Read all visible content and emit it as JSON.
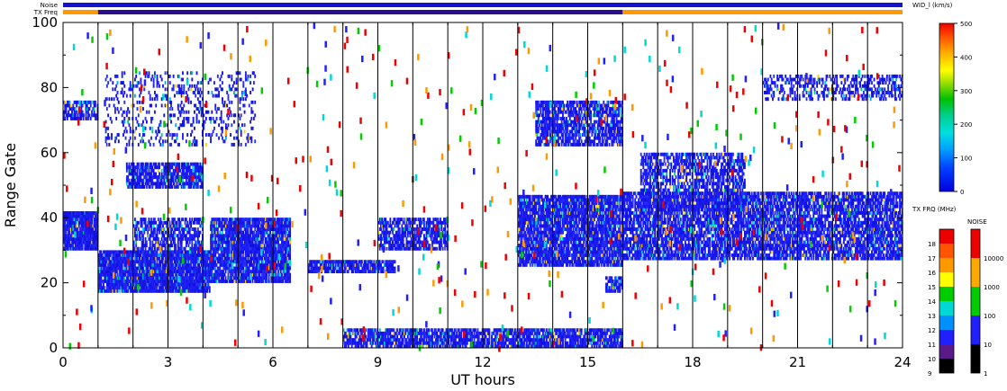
{
  "chart_data": {
    "type": "heatmap",
    "xlabel": "UT hours",
    "ylabel": "Range Gate",
    "x_ticks": [
      "0",
      "3",
      "6",
      "9",
      "12",
      "15",
      "18",
      "21",
      "24"
    ],
    "y_ticks": [
      "0",
      "20",
      "40",
      "60",
      "80",
      "100"
    ],
    "xlim": [
      0,
      24
    ],
    "ylim": [
      0,
      100
    ],
    "vertical_lines_ut": [
      1,
      2,
      3,
      4,
      5,
      6,
      7,
      8,
      9,
      10,
      11,
      12,
      13,
      14,
      15,
      16,
      17,
      18,
      19,
      20,
      21,
      22,
      23
    ],
    "status_bars": {
      "noise_label": "Noise",
      "txfreq_label": "TX Freq",
      "noise_color": "#1414d0",
      "txfreq_segments": [
        {
          "from": 0,
          "to": 1,
          "color": "#ff9900"
        },
        {
          "from": 1,
          "to": 16,
          "color": "#2a0f8f"
        },
        {
          "from": 16,
          "to": 24,
          "color": "#ff9900"
        }
      ]
    },
    "colorbars": [
      {
        "title": "WID_l (km/s)",
        "ticks": [
          "0",
          "100",
          "200",
          "300",
          "400",
          "500"
        ]
      },
      {
        "title": "TX FRQ (MHz)",
        "ticks": [
          "9",
          "10",
          "11",
          "12",
          "13",
          "14",
          "15",
          "16",
          "17",
          "18"
        ],
        "colors": [
          "#000000",
          "#5a1a8a",
          "#2020ff",
          "#0090ff",
          "#00d8d8",
          "#00cc00",
          "#ffff00",
          "#ff9900",
          "#ff5500",
          "#ee0000"
        ]
      },
      {
        "title": "NOISE",
        "ticks": [
          "1",
          "10",
          "100",
          "1000",
          "10000"
        ],
        "colors": [
          "#000000",
          "#2020ff",
          "#00cc00",
          "#ffaa00",
          "#ee0000"
        ]
      }
    ],
    "dominant_color": "#1a1aee",
    "scatter_regions": [
      {
        "name": "band-start-35",
        "x0": 0.0,
        "x1": 1.0,
        "y0": 30,
        "y1": 42,
        "density": 0.95
      },
      {
        "name": "patch-start-73",
        "x0": 0.0,
        "x1": 1.0,
        "y0": 70,
        "y1": 76,
        "density": 0.7
      },
      {
        "name": "low-band-20",
        "x0": 1.0,
        "x1": 4.2,
        "y0": 17,
        "y1": 30,
        "density": 0.95
      },
      {
        "name": "rising-band-a",
        "x0": 4.2,
        "x1": 6.5,
        "y0": 20,
        "y1": 40,
        "density": 0.9
      },
      {
        "name": "arc-50",
        "x0": 1.8,
        "x1": 4.0,
        "y0": 49,
        "y1": 57,
        "density": 0.8
      },
      {
        "name": "mid-blob-35",
        "x0": 2.0,
        "x1": 4.0,
        "y0": 30,
        "y1": 40,
        "density": 0.6
      },
      {
        "name": "cyan-high",
        "x0": 1.2,
        "x1": 5.5,
        "y0": 62,
        "y1": 85,
        "density": 0.2
      },
      {
        "name": "gate-25",
        "x0": 7.0,
        "x1": 9.5,
        "y0": 23,
        "y1": 27,
        "density": 0.85
      },
      {
        "name": "gate-35-mid",
        "x0": 9.0,
        "x1": 11.0,
        "y0": 30,
        "y1": 40,
        "density": 0.7
      },
      {
        "name": "ground-0",
        "x0": 8.0,
        "x1": 16.0,
        "y0": 0,
        "y1": 6,
        "density": 0.8
      },
      {
        "name": "descending-band",
        "x0": 13.0,
        "x1": 16.0,
        "y0": 25,
        "y1": 47,
        "density": 0.85
      },
      {
        "name": "arc-72",
        "x0": 13.5,
        "x1": 16.0,
        "y0": 62,
        "y1": 76,
        "density": 0.75
      },
      {
        "name": "small-20",
        "x0": 15.5,
        "x1": 16.0,
        "y0": 17,
        "y1": 22,
        "density": 0.8
      },
      {
        "name": "late-band-38",
        "x0": 16.0,
        "x1": 24.0,
        "y0": 27,
        "y1": 48,
        "density": 0.75
      },
      {
        "name": "late-arc-55",
        "x0": 16.5,
        "x1": 19.5,
        "y0": 42,
        "y1": 60,
        "density": 0.6
      },
      {
        "name": "late-high-80",
        "x0": 20.0,
        "x1": 24.0,
        "y0": 76,
        "y1": 84,
        "density": 0.4
      }
    ]
  }
}
